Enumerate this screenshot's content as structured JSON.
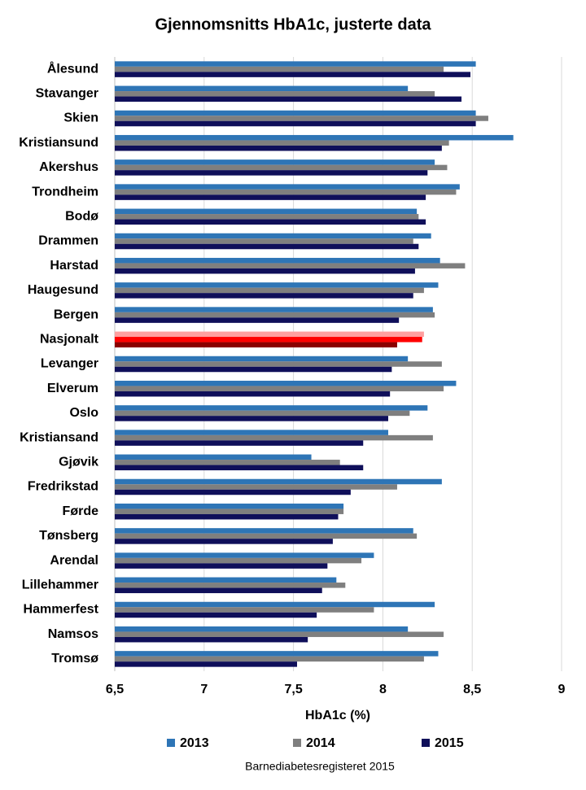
{
  "chart_data": {
    "type": "hbar",
    "title": "Gjennomsnitts HbA1c, justerte data",
    "x_label": "HbA1c (%)",
    "source": "Barnediabetesregisteret 2015",
    "categories": [
      "Ålesund",
      "Stavanger",
      "Skien",
      "Kristiansund",
      "Akershus",
      "Trondheim",
      "Bodø",
      "Drammen",
      "Harstad",
      "Haugesund",
      "Bergen",
      "Nasjonalt",
      "Levanger",
      "Elverum",
      "Oslo",
      "Kristiansand",
      "Gjøvik",
      "Fredrikstad",
      "Førde",
      "Tønsberg",
      "Arendal",
      "Lillehammer",
      "Hammerfest",
      "Namsos",
      "Tromsø"
    ],
    "series": [
      {
        "name": "2013",
        "color": "#2e75b6",
        "highlight_color": "#ff9f9f",
        "values": [
          8.52,
          8.14,
          8.52,
          8.73,
          8.29,
          8.43,
          8.19,
          8.27,
          8.32,
          8.31,
          8.28,
          8.23,
          8.14,
          8.41,
          8.25,
          8.03,
          7.6,
          8.33,
          7.78,
          8.17,
          7.95,
          7.74,
          8.29,
          8.14,
          8.31
        ]
      },
      {
        "name": "2014",
        "color": "#7f7f7f",
        "highlight_color": "#ff0000",
        "values": [
          8.34,
          8.29,
          8.59,
          8.37,
          8.36,
          8.41,
          8.2,
          8.17,
          8.46,
          8.23,
          8.29,
          8.22,
          8.33,
          8.34,
          8.15,
          8.28,
          7.76,
          8.08,
          7.78,
          8.19,
          7.88,
          7.79,
          7.95,
          8.34,
          8.23
        ]
      },
      {
        "name": "2015",
        "color": "#0f0f5a",
        "highlight_color": "#8b0000",
        "values": [
          8.49,
          8.44,
          8.52,
          8.33,
          8.25,
          8.24,
          8.24,
          8.2,
          8.18,
          8.17,
          8.09,
          8.08,
          8.05,
          8.04,
          8.03,
          7.89,
          7.89,
          7.82,
          7.75,
          7.72,
          7.69,
          7.66,
          7.63,
          7.58,
          7.52
        ]
      }
    ],
    "highlight_index": 11,
    "xlim": [
      6.5,
      9
    ],
    "xticks": [
      {
        "value": 6.5,
        "label": "6,5"
      },
      7,
      {
        "value": 7.5,
        "label": "7,5"
      },
      8,
      {
        "value": 8.5,
        "label": "8,5"
      },
      9
    ],
    "grid": true
  }
}
